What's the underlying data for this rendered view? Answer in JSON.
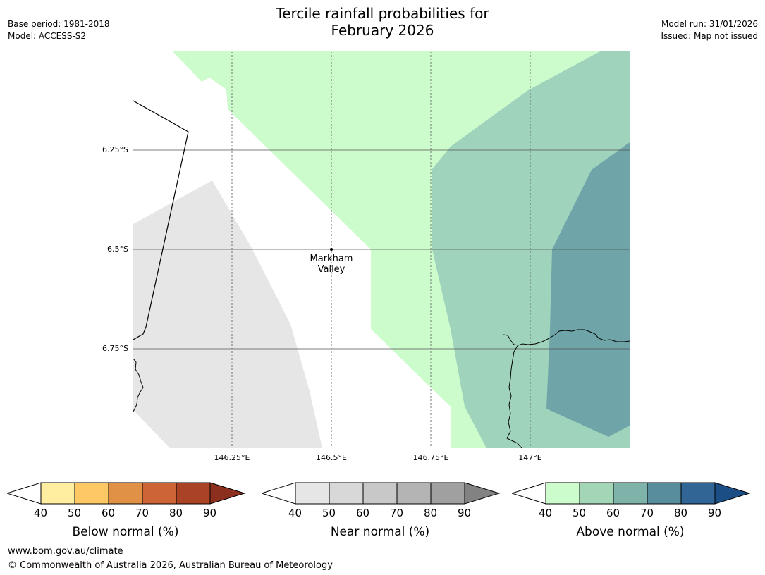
{
  "title_line1": "Tercile rainfall probabilities for",
  "title_line2": "February 2026",
  "header_left": {
    "base_period": "Base period: 1981-2018",
    "model": "Model: ACCESS-S2"
  },
  "header_right": {
    "model_run": "Model run: 31/01/2026",
    "issued": "Issued: Map not issued"
  },
  "map": {
    "lon_ticks": [
      "146.25°E",
      "146.5°E",
      "146.75°E",
      "147°E"
    ],
    "lat_ticks": [
      "6.25°S",
      "6.5°S",
      "6.75°S"
    ],
    "place": {
      "name_line1": "Markham",
      "name_line2": "Valley"
    },
    "colors": {
      "near_normal_fill": "#e6e6e6",
      "above_40": "#ccfccc",
      "above_50": "#a0d3bc",
      "above_60": "#6fa5a8"
    }
  },
  "colorbars": [
    {
      "title": "Below normal (%)",
      "ticks": [
        "40",
        "50",
        "60",
        "70",
        "80",
        "90"
      ],
      "colors": [
        "#ffeda0",
        "#fec965",
        "#e09145",
        "#cc6435",
        "#aa4226",
        "#8c2f1e"
      ]
    },
    {
      "title": "Near normal (%)",
      "ticks": [
        "40",
        "50",
        "60",
        "70",
        "80",
        "90"
      ],
      "colors": [
        "#e6e6e6",
        "#d8d8d8",
        "#c8c8c8",
        "#b4b4b4",
        "#a0a0a0",
        "#828282"
      ]
    },
    {
      "title": "Above normal (%)",
      "ticks": [
        "40",
        "50",
        "60",
        "70",
        "80",
        "90"
      ],
      "colors": [
        "#ccfccc",
        "#a3d6b7",
        "#7fb3aa",
        "#578d9c",
        "#306596",
        "#1b4e85"
      ]
    }
  ],
  "footer": {
    "url": "www.bom.gov.au/climate",
    "copyright": "© Commonwealth of Australia 2026, Australian Bureau of Meteorology"
  }
}
